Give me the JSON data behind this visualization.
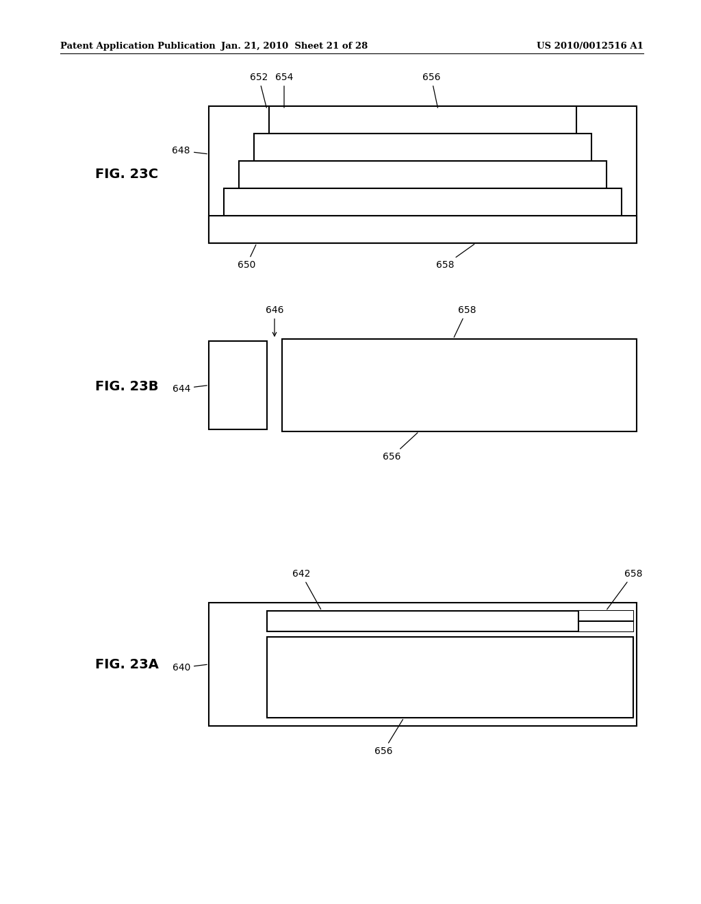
{
  "header_left": "Patent Application Publication",
  "header_mid": "Jan. 21, 2010  Sheet 21 of 28",
  "header_right": "US 2010/0012516 A1",
  "bg_color": "#ffffff",
  "fig_label_23C": "FIG. 23C",
  "fig_label_23B": "FIG. 23B",
  "fig_label_23A": "FIG. 23A"
}
